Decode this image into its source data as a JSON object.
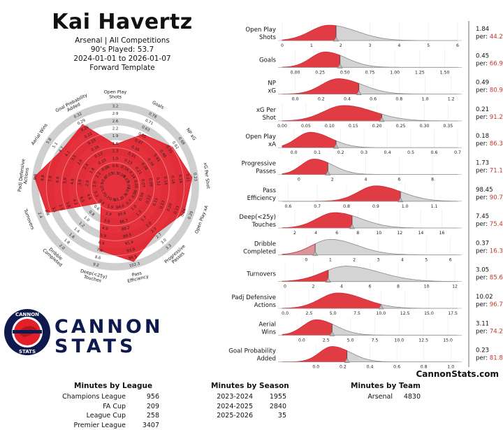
{
  "header": {
    "player": "Kai Havertz",
    "line1": "Arsenal | All Competitions",
    "line2": "90's Played: 53.7",
    "line3": "2024-01-01 to 2026-01-07",
    "line4": "Forward Template"
  },
  "colors": {
    "red": "#e3202a",
    "grey": "#d4d4d4",
    "navy": "#0e1a4d"
  },
  "logo": {
    "word1": "CANNON",
    "word2": "STATS",
    "ring_top": "CANNON",
    "ring_bottom": "STATS"
  },
  "site": "CannonStats.com",
  "chart_data": [
    {
      "type": "radar",
      "metrics": [
        {
          "label": "Open Play Shots",
          "percentile": 44.2,
          "ticks": [
            "0.3",
            "0.6",
            "1.0",
            "1.3",
            "1.6",
            "1.9",
            "2.2",
            "2.6",
            "2.9",
            "3.2"
          ]
        },
        {
          "label": "Goals",
          "percentile": 66.9,
          "ticks": [
            "0.08",
            "0.16",
            "0.23",
            "0.31",
            "0.39",
            "0.47",
            "0.55",
            "0.63",
            "0.71",
            "0.78"
          ]
        },
        {
          "label": "NP xG",
          "percentile": 80.9,
          "ticks": [
            "0.07",
            "0.14",
            "0.21",
            "0.28",
            "0.34",
            "0.41",
            "0.48",
            "0.55",
            "0.62",
            "0.69"
          ]
        },
        {
          "label": "xG Per Shot",
          "percentile": 91.2,
          "ticks": [
            "0.02",
            "0.05",
            "0.07",
            "0.09",
            "0.12",
            "0.14",
            "0.16",
            "0.19",
            "0.21",
            "0.23"
          ]
        },
        {
          "label": "Open Play xA",
          "percentile": 86.3,
          "ticks": [
            "0.03",
            "0.06",
            "0.09",
            "0.12",
            "0.15",
            "0.17",
            "0.20",
            "0.23",
            "0.26",
            "0.29"
          ]
        },
        {
          "label": "Progressive Passes",
          "percentile": 71.1,
          "ticks": [
            "0.3",
            "0.7",
            "1.0",
            "1.3",
            "1.7",
            "2.0",
            "2.3",
            "2.7",
            "3.0",
            "3.3"
          ]
        },
        {
          "label": "Pass Efficiency",
          "percentile": 90.7,
          "ticks": [
            "81.2",
            "84.0",
            "85.6",
            "86.7",
            "88.2",
            "89.5",
            "91.4",
            "93.9",
            "96.5",
            "102.3"
          ]
        },
        {
          "label": "Deep(<25y) Touches",
          "percentile": 75.4,
          "ticks": [
            "0.9",
            "1.9",
            "2.9",
            "3.9",
            "4.9",
            "5.9",
            "6.9",
            "7.9",
            "8.6",
            "9.2"
          ]
        },
        {
          "label": "Dribble Completed",
          "percentile": 16.3,
          "ticks": [
            "0.2",
            "0.4",
            "0.6",
            "0.8",
            "1.0",
            "1.2",
            "1.4",
            "1.6",
            "1.8",
            "2.0"
          ]
        },
        {
          "label": "Turnovers",
          "percentile": 85.6,
          "ticks": [
            "5.7",
            "5.3",
            "4.9",
            "4.5",
            "4.2",
            "3.8",
            "3.5",
            "3.1",
            "2.8",
            "2.4"
          ]
        },
        {
          "label": "Padj Defensive Actions",
          "percentile": 96.7,
          "ticks": [
            "0.9",
            "1.9",
            "2.9",
            "3.9",
            "4.9",
            "5.9",
            "6.9",
            "7.9",
            "8.8",
            "9.8"
          ]
        },
        {
          "label": "Aerial Wins",
          "percentile": 74.2,
          "ticks": [
            "0.6",
            "1.2",
            "1.8",
            "2.4",
            "3.0",
            "3.5",
            "4.1",
            "4.7",
            "5.1",
            "5.8"
          ]
        },
        {
          "label": "Goal Probability Added",
          "percentile": 81.8,
          "ticks": [
            "0.03",
            "0.06",
            "0.10",
            "0.13",
            "0.16",
            "0.19",
            "0.22",
            "0.26",
            "0.29",
            "0.32"
          ]
        }
      ]
    },
    {
      "type": "distribution",
      "rows": [
        {
          "label": [
            "Open Play",
            "Shots"
          ],
          "value": "1.84",
          "per": "44.2",
          "v": 1.84,
          "min": 0,
          "max": 6,
          "ticks": [
            "0",
            "1",
            "2",
            "3",
            "4",
            "5",
            "6"
          ],
          "peak": 1.6,
          "sd": 0.75
        },
        {
          "label": [
            "Goals"
          ],
          "value": "0.45",
          "per": "66.9",
          "v": 0.45,
          "min": -0.13,
          "max": 1.63,
          "ticks": [
            "0.00",
            "0.25",
            "0.50",
            "0.75",
            "1.00",
            "1.25",
            "1.50"
          ],
          "peak": 0.3,
          "sd": 0.17
        },
        {
          "label": [
            "NP",
            "xG"
          ],
          "value": "0.49",
          "per": "80.9",
          "v": 0.49,
          "min": -0.1,
          "max": 1.25,
          "ticks": [
            "0.0",
            "0.2",
            "0.4",
            "0.6",
            "0.8",
            "1.0",
            "1.2"
          ],
          "peak": 0.33,
          "sd": 0.15
        },
        {
          "label": [
            "xG Per",
            "Shot"
          ],
          "value": "0.21",
          "per": "91.2",
          "v": 0.21,
          "min": 0.0,
          "max": 0.37,
          "ticks": [
            "0.00",
            "0.05",
            "0.10",
            "0.15",
            "0.20",
            "0.25",
            "0.30",
            "0.35"
          ],
          "peak": 0.13,
          "sd": 0.05
        },
        {
          "label": [
            "Open Play",
            "xA"
          ],
          "value": "0.18",
          "per": "86.3",
          "v": 0.18,
          "min": -0.05,
          "max": 0.7,
          "ticks": [
            "0.0",
            "0.1",
            "0.2",
            "0.3",
            "0.4",
            "0.5",
            "0.6",
            "0.7"
          ],
          "peak": 0.07,
          "sd": 0.07
        },
        {
          "label": [
            "Progressive",
            "Passes"
          ],
          "value": "1.73",
          "per": "71.1",
          "v": 1.73,
          "min": -1.0,
          "max": 9.5,
          "ticks": [
            "0",
            "2",
            "4",
            "6",
            "8"
          ],
          "peak": 0.9,
          "sd": 0.9
        },
        {
          "label": [
            "Pass",
            "Efficiency"
          ],
          "value": "98.45",
          "per": "90.7",
          "v": 98.45,
          "min": 0.58,
          "max": 1.18,
          "scale": 100,
          "ticks": [
            "0.6",
            "0.7",
            "0.8",
            "0.9",
            "1.0",
            "1.1"
          ],
          "peak": 0.9,
          "sd": 0.07
        },
        {
          "label": [
            "Deep(<25y)",
            "Touches"
          ],
          "value": "7.45",
          "per": "75.4",
          "v": 7.45,
          "min": 0.8,
          "max": 17.5,
          "ticks": [
            "2",
            "4",
            "6",
            "8",
            "10",
            "12",
            "14",
            "16"
          ],
          "peak": 5.8,
          "sd": 2.0
        },
        {
          "label": [
            "Dribble",
            "Completed"
          ],
          "value": "0.37",
          "per": "16.3",
          "v": 0.37,
          "min": -1.0,
          "max": 6.3,
          "ticks": [
            "0",
            "1",
            "2",
            "3",
            "4",
            "5",
            "6"
          ],
          "peak": 1.0,
          "sd": 0.9
        },
        {
          "label": [
            "Turnovers"
          ],
          "value": "3.05",
          "per": "85.6",
          "v": 3.05,
          "min": -0.2,
          "max": 12.2,
          "ticks": [
            "0",
            "2",
            "4",
            "6",
            "8",
            "10",
            "12"
          ],
          "peak": 4.3,
          "sd": 1.9
        },
        {
          "label": [
            "Padj Defensive",
            "Actions"
          ],
          "value": "10.02",
          "per": "96.7",
          "v": 10.02,
          "min": -0.3,
          "max": 18.0,
          "ticks": [
            "0.0",
            "2.5",
            "5.0",
            "7.5",
            "10.0",
            "12.5",
            "15.0",
            "17.5"
          ],
          "peak": 5.5,
          "sd": 2.2
        },
        {
          "label": [
            "Aerial",
            "Wins"
          ],
          "value": "3.11",
          "per": "74.2",
          "v": 3.11,
          "min": -2.0,
          "max": 16.0,
          "ticks": [
            "0.0",
            "2.5",
            "5.0",
            "7.5",
            "10.0",
            "12.5",
            "15.0"
          ],
          "peak": 1.5,
          "sd": 1.6
        },
        {
          "label": [
            "Goal Probability",
            "Added"
          ],
          "value": "0.23",
          "per": "81.8",
          "v": 0.23,
          "min": -0.25,
          "max": 1.05,
          "ticks": [
            "0.0",
            "0.2",
            "0.4",
            "0.6",
            "0.8",
            "1.0"
          ],
          "peak": 0.12,
          "sd": 0.11
        }
      ],
      "per_label": "per: "
    }
  ],
  "tables": {
    "league": {
      "title": "Minutes by League",
      "rows": [
        [
          "Champions League",
          "956"
        ],
        [
          "FA Cup",
          "209"
        ],
        [
          "League Cup",
          "258"
        ],
        [
          "Premier League",
          "3407"
        ]
      ]
    },
    "season": {
      "title": "Minutes by Season",
      "rows": [
        [
          "2023-2024",
          "1955"
        ],
        [
          "2024-2025",
          "2840"
        ],
        [
          "2025-2026",
          "35"
        ]
      ]
    },
    "team": {
      "title": "Minutes by Team",
      "rows": [
        [
          "Arsenal",
          "4830"
        ]
      ]
    }
  }
}
